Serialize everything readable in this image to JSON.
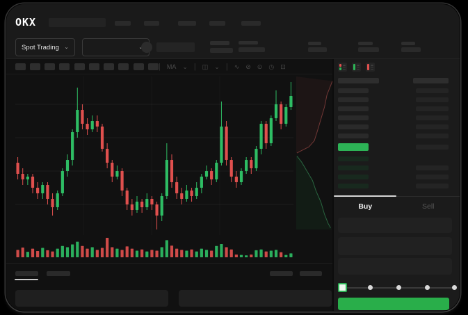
{
  "header": {
    "logo": "OKX",
    "market_selector_label": "Spot Trading",
    "chevron": "⌄"
  },
  "toolbar": {
    "icons": [
      "MA",
      "⌄",
      "◫",
      "⌄",
      "∿",
      "⊘",
      "⊙",
      "◷",
      "⊡"
    ]
  },
  "order_panel": {
    "buy_tab": "Buy",
    "sell_tab": "Sell"
  },
  "colors": {
    "up": "#2EBD64",
    "down": "#E0504E",
    "accent_green": "#2DB356",
    "buy_button_green": "#29AE4A"
  },
  "chart_data": {
    "type": "candlestick",
    "title": "",
    "axis_labels_visible": false,
    "gridlines": true,
    "colors": {
      "up": "#2EBD64",
      "down": "#E0504E"
    },
    "candles": [
      [
        57,
        59,
        51,
        53
      ],
      [
        53,
        55,
        49,
        51
      ],
      [
        51,
        53,
        49,
        52
      ],
      [
        52,
        53,
        46,
        48
      ],
      [
        48,
        50,
        44,
        46
      ],
      [
        46,
        50,
        44,
        49
      ],
      [
        49,
        50,
        42,
        44
      ],
      [
        44,
        46,
        38,
        41
      ],
      [
        41,
        47,
        40,
        46
      ],
      [
        46,
        55,
        45,
        54
      ],
      [
        54,
        60,
        52,
        58
      ],
      [
        58,
        69,
        56,
        68
      ],
      [
        68,
        84,
        66,
        76
      ],
      [
        76,
        78,
        69,
        71
      ],
      [
        71,
        73,
        67,
        69
      ],
      [
        69,
        74,
        68,
        72
      ],
      [
        72,
        74,
        68,
        70
      ],
      [
        70,
        71,
        61,
        62
      ],
      [
        62,
        64,
        55,
        57
      ],
      [
        57,
        58,
        50,
        52
      ],
      [
        52,
        56,
        51,
        54
      ],
      [
        54,
        55,
        45,
        47
      ],
      [
        47,
        48,
        40,
        42
      ],
      [
        42,
        44,
        38,
        40
      ],
      [
        40,
        45,
        39,
        43
      ],
      [
        43,
        44,
        39,
        41
      ],
      [
        41,
        46,
        40,
        44
      ],
      [
        44,
        45,
        40,
        42
      ],
      [
        42,
        43,
        33,
        38
      ],
      [
        38,
        46,
        36,
        45
      ],
      [
        45,
        64,
        44,
        58
      ],
      [
        58,
        60,
        48,
        50
      ],
      [
        50,
        52,
        44,
        46
      ],
      [
        46,
        48,
        42,
        44
      ],
      [
        44,
        49,
        43,
        47
      ],
      [
        47,
        48,
        43,
        45
      ],
      [
        45,
        50,
        44,
        48
      ],
      [
        48,
        53,
        46,
        52
      ],
      [
        52,
        56,
        51,
        54
      ],
      [
        54,
        55,
        49,
        51
      ],
      [
        51,
        58,
        50,
        57
      ],
      [
        57,
        79,
        56,
        70
      ],
      [
        70,
        72,
        56,
        58
      ],
      [
        58,
        59,
        50,
        52
      ],
      [
        52,
        54,
        48,
        50
      ],
      [
        50,
        55,
        49,
        54
      ],
      [
        54,
        59,
        53,
        58
      ],
      [
        58,
        59,
        53,
        55
      ],
      [
        55,
        63,
        54,
        62
      ],
      [
        62,
        72,
        60,
        71
      ],
      [
        71,
        72,
        62,
        64
      ],
      [
        64,
        74,
        63,
        73
      ],
      [
        73,
        83,
        72,
        78
      ],
      [
        78,
        79,
        69,
        71
      ],
      [
        71,
        78,
        70,
        77
      ],
      [
        77,
        86,
        76,
        81
      ]
    ],
    "volume": [
      38,
      50,
      28,
      44,
      32,
      48,
      36,
      30,
      44,
      58,
      52,
      66,
      80,
      58,
      44,
      52,
      38,
      48,
      100,
      52,
      44,
      38,
      56,
      44,
      34,
      40,
      30,
      38,
      34,
      52,
      88,
      60,
      44,
      38,
      34,
      40,
      30,
      44,
      38,
      34,
      58,
      68,
      52,
      40,
      14,
      12,
      10,
      14,
      36,
      40,
      30,
      34,
      38,
      26,
      12,
      20
    ],
    "depth": {
      "asks": [
        [
          1.0,
          0.03
        ],
        [
          0.85,
          0.12
        ],
        [
          0.78,
          0.2
        ],
        [
          0.68,
          0.28
        ],
        [
          0.58,
          0.36
        ],
        [
          0.5,
          0.42
        ],
        [
          0.35,
          0.46
        ],
        [
          0.1,
          0.49
        ],
        [
          0.02,
          0.5
        ]
      ],
      "bids": [
        [
          0.02,
          0.52
        ],
        [
          0.15,
          0.56
        ],
        [
          0.3,
          0.62
        ],
        [
          0.45,
          0.68
        ],
        [
          0.55,
          0.75
        ],
        [
          0.68,
          0.82
        ],
        [
          0.78,
          0.9
        ],
        [
          0.88,
          0.96
        ],
        [
          0.95,
          0.99
        ]
      ]
    }
  }
}
